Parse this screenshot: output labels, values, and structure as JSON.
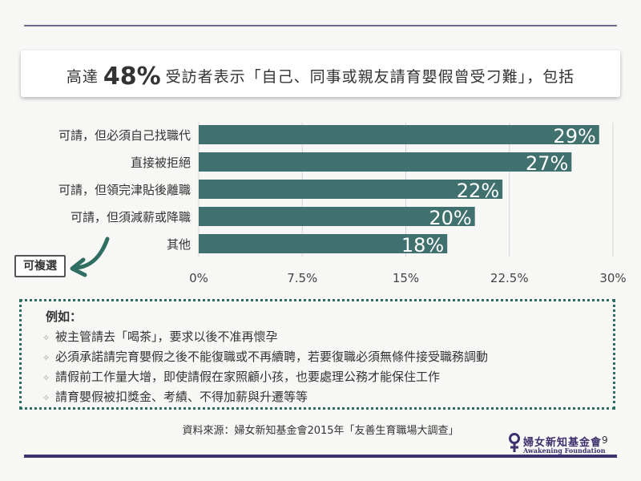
{
  "title": {
    "prefix": "高達",
    "highlight": "48%",
    "suffix": "受訪者表示「自己、同事或親友請育嬰假曾受刁難」，包括"
  },
  "chart_data": {
    "type": "bar",
    "orientation": "horizontal",
    "categories": [
      "可請，但必須自己找職代",
      "直接被拒絕",
      "可請，但領完津貼後離職",
      "可請，但須減薪或降職",
      "其他"
    ],
    "values": [
      29,
      27,
      22,
      20,
      18
    ],
    "value_labels": [
      "29%",
      "27%",
      "22%",
      "20%",
      "18%"
    ],
    "xlim": [
      0,
      30
    ],
    "ticks": [
      0,
      7.5,
      15,
      22.5,
      30
    ],
    "tick_labels": [
      "0%",
      "7.5%",
      "15%",
      "22.5%",
      "30%"
    ],
    "grid": true,
    "bar_color": "#41716e",
    "label_color": "#ffffff"
  },
  "multi_select_label": "可複選",
  "examples": {
    "heading": "例如：",
    "items": [
      "被主管請去「喝茶」，要求以後不准再懷孕",
      "必須承諾請完育嬰假之後不能復職或不再續聘，若要復職必須無條件接受職務調動",
      "請假前工作量大增，即使請假在家照顧小孩，也要處理公務才能保住工作",
      "請育嬰假被扣獎金、考績、不得加薪與升遷等等"
    ]
  },
  "source": "資料來源：婦女新知基金會2015年「友善生育職場大調查」",
  "logo": {
    "name_zh": "婦女新知基金會",
    "name_en": "Awakening Foundation"
  },
  "page_number": "9",
  "colors": {
    "accent_teal": "#41716e",
    "border_teal": "#2f6e62",
    "rule_purple": "#3d3270"
  }
}
